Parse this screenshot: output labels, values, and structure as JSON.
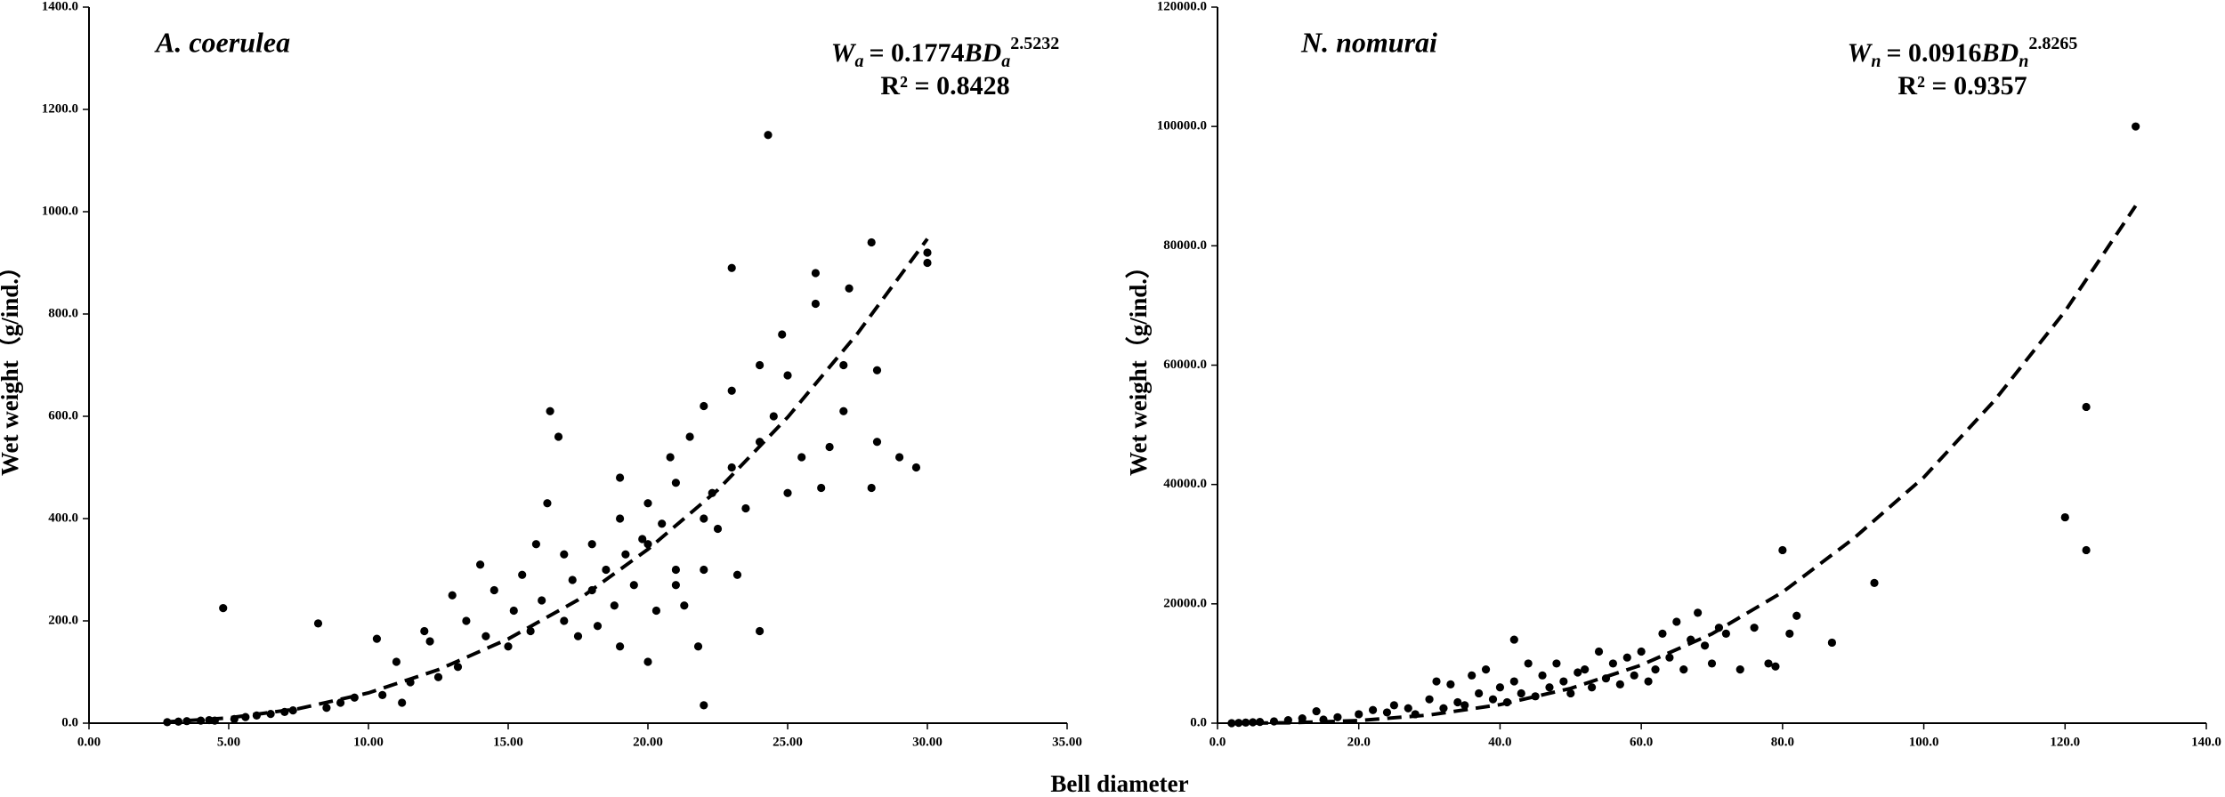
{
  "x_label": "Bell diameter",
  "chart_data": [
    {
      "type": "scatter",
      "title": "A. coerulea",
      "y_label": "Wet weight（g/ind.）",
      "equation": {
        "w": "W",
        "sub": "a",
        "rhs": "= 0.1774",
        "bd": "BD",
        "bd_sub": "a",
        "exp": "2.5232"
      },
      "r2": "R² = 0.8428",
      "xlim": [
        0,
        35
      ],
      "ylim": [
        0,
        1400
      ],
      "xticks": [
        {
          "value": 0,
          "label": "0.00"
        },
        {
          "value": 5,
          "label": "5.00"
        },
        {
          "value": 10,
          "label": "10.00"
        },
        {
          "value": 15,
          "label": "15.00"
        },
        {
          "value": 20,
          "label": "20.00"
        },
        {
          "value": 25,
          "label": "25.00"
        },
        {
          "value": 30,
          "label": "30.00"
        },
        {
          "value": 35,
          "label": "35.00"
        }
      ],
      "yticks": [
        {
          "value": 0,
          "label": "0.0"
        },
        {
          "value": 200,
          "label": "200.0"
        },
        {
          "value": 400,
          "label": "400.0"
        },
        {
          "value": 600,
          "label": "600.0"
        },
        {
          "value": 800,
          "label": "800.0"
        },
        {
          "value": 1000,
          "label": "1000.0"
        },
        {
          "value": 1200,
          "label": "1200.0"
        },
        {
          "value": 1400,
          "label": "1400.0"
        }
      ],
      "series": [
        {
          "type": "scatter",
          "color": "#000000",
          "x": [
            2.8,
            3.2,
            3.5,
            4,
            4.3,
            4.5,
            4.8,
            5.2,
            5.6,
            6,
            6.5,
            7,
            7.3,
            8.2,
            8.5,
            9,
            9.5,
            10.3,
            10.5,
            11,
            11.2,
            11.5,
            12,
            12.2,
            12.5,
            13,
            13.2,
            13.5,
            14,
            14.2,
            14.5,
            15,
            15.2,
            15.5,
            15.8,
            16,
            16.2,
            16.4,
            16.5,
            16.8,
            17,
            17,
            17.3,
            17.5,
            18,
            18,
            18.2,
            18.5,
            18.8,
            19,
            19,
            19,
            19.2,
            19.5,
            19.8,
            20,
            20,
            20,
            20.3,
            20.5,
            20.8,
            21,
            21,
            21,
            21.3,
            21.5,
            21.8,
            22,
            22,
            22,
            22,
            22.3,
            22.5,
            23,
            23,
            23,
            23.2,
            23.5,
            24,
            24,
            24,
            24.3,
            24.5,
            24.8,
            25,
            25,
            25.5,
            26,
            26,
            26.2,
            26.5,
            27,
            27,
            27.2,
            28,
            28,
            28.2,
            28.2,
            29,
            29.6,
            30,
            30
          ],
          "values": [
            2,
            3,
            4,
            5,
            6,
            5,
            225,
            8,
            12,
            15,
            18,
            22,
            25,
            195,
            30,
            40,
            50,
            165,
            55,
            120,
            40,
            80,
            180,
            160,
            90,
            250,
            110,
            200,
            310,
            170,
            260,
            150,
            220,
            290,
            180,
            350,
            240,
            430,
            610,
            560,
            200,
            330,
            280,
            170,
            260,
            350,
            190,
            300,
            230,
            150,
            400,
            480,
            330,
            270,
            360,
            120,
            430,
            350,
            220,
            390,
            520,
            300,
            470,
            270,
            230,
            560,
            150,
            35,
            400,
            620,
            300,
            450,
            380,
            890,
            500,
            650,
            290,
            420,
            700,
            550,
            180,
            1150,
            600,
            760,
            450,
            680,
            520,
            820,
            880,
            460,
            540,
            700,
            610,
            850,
            940,
            460,
            550,
            690,
            520,
            500,
            900,
            920
          ]
        },
        {
          "type": "line",
          "dash": true,
          "color": "#000000",
          "x": [
            2.7,
            5,
            7.5,
            10,
            12.5,
            15,
            17.5,
            20,
            22.5,
            25,
            27.5,
            30
          ],
          "values": [
            2.2,
            10.3,
            28.4,
            59.2,
            104.5,
            164.7,
            241,
            340,
            456,
            598,
            762,
            947
          ]
        }
      ]
    },
    {
      "type": "scatter",
      "title": "N. nomurai",
      "y_label": "Wet weight（g/ind.）",
      "equation": {
        "w": "W",
        "sub": "n",
        "rhs": "= 0.0916",
        "bd": "BD",
        "bd_sub": "n",
        "exp": "2.8265"
      },
      "r2": "R² = 0.9357",
      "xlim": [
        0,
        140
      ],
      "ylim": [
        0,
        120000
      ],
      "xticks": [
        {
          "value": 0,
          "label": "0.0"
        },
        {
          "value": 20,
          "label": "20.0"
        },
        {
          "value": 40,
          "label": "40.0"
        },
        {
          "value": 60,
          "label": "60.0"
        },
        {
          "value": 80,
          "label": "80.0"
        },
        {
          "value": 100,
          "label": "100.0"
        },
        {
          "value": 120,
          "label": "120.0"
        },
        {
          "value": 140,
          "label": "140.0"
        }
      ],
      "yticks": [
        {
          "value": 0,
          "label": "0.0"
        },
        {
          "value": 20000,
          "label": "20000.0"
        },
        {
          "value": 40000,
          "label": "40000.0"
        },
        {
          "value": 60000,
          "label": "60000.0"
        },
        {
          "value": 80000,
          "label": "80000.0"
        },
        {
          "value": 100000,
          "label": "100000.0"
        },
        {
          "value": 120000,
          "label": "120000.0"
        }
      ],
      "series": [
        {
          "type": "scatter",
          "color": "#000000",
          "x": [
            2,
            3,
            4,
            5,
            6,
            8,
            10,
            12,
            14,
            15,
            17,
            20,
            22,
            24,
            25,
            27,
            28,
            30,
            31,
            32,
            33,
            34,
            35,
            36,
            37,
            38,
            39,
            40,
            41,
            42,
            42,
            43,
            44,
            45,
            46,
            47,
            48,
            49,
            50,
            51,
            52,
            53,
            54,
            55,
            56,
            57,
            58,
            59,
            60,
            61,
            62,
            63,
            64,
            65,
            66,
            67,
            68,
            69,
            70,
            71,
            72,
            74,
            76,
            78,
            79,
            80,
            81,
            82,
            87,
            93,
            120,
            123,
            123,
            130
          ],
          "values": [
            0,
            50,
            100,
            150,
            200,
            300,
            500,
            800,
            2000,
            600,
            1000,
            1500,
            2200,
            1800,
            3000,
            2500,
            1500,
            4000,
            7000,
            2500,
            6500,
            3500,
            3000,
            8000,
            5000,
            9000,
            4000,
            6000,
            3500,
            14000,
            7000,
            5000,
            10000,
            4500,
            8000,
            6000,
            10000,
            7000,
            5000,
            8500,
            9000,
            6000,
            12000,
            7500,
            10000,
            6500,
            11000,
            8000,
            12000,
            7000,
            9000,
            15000,
            11000,
            17000,
            9000,
            14000,
            18500,
            13000,
            10000,
            16000,
            15000,
            9000,
            16000,
            10000,
            9500,
            29000,
            15000,
            18000,
            13500,
            23500,
            34500,
            53000,
            29000,
            100000
          ]
        },
        {
          "type": "line",
          "dash": true,
          "color": "#000000",
          "x": [
            2,
            10,
            20,
            30,
            40,
            50,
            60,
            70,
            80,
            90,
            100,
            110,
            120,
            130
          ],
          "values": [
            0.65,
            61,
            436,
            1370,
            3094,
            5830,
            9727,
            14970,
            21957,
            30880,
            41200,
            54050,
            69030,
            86700
          ]
        }
      ]
    }
  ]
}
